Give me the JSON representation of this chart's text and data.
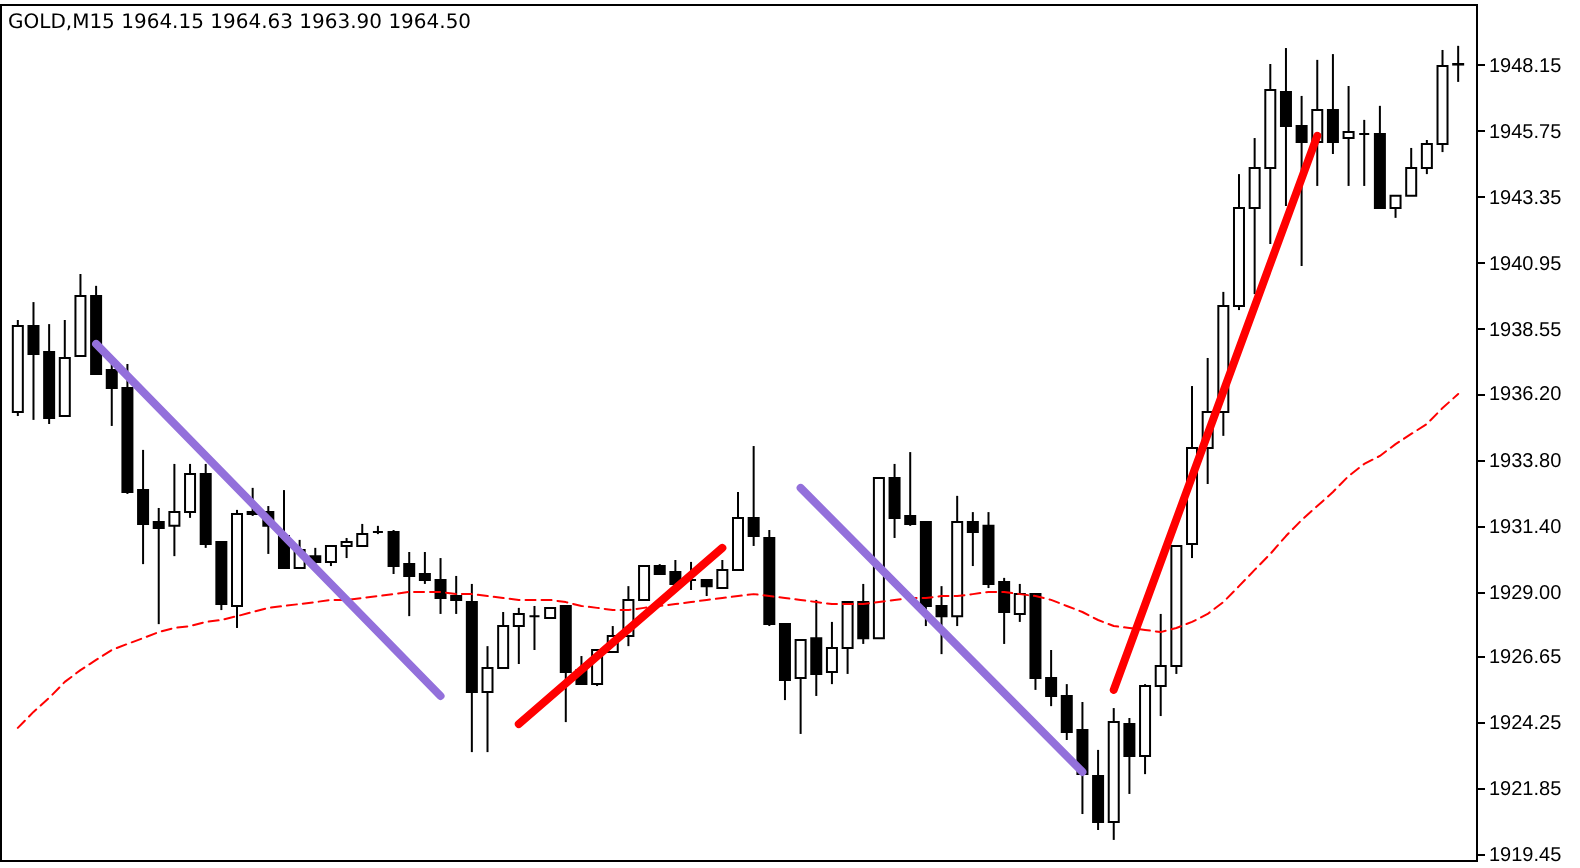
{
  "chart_data": {
    "type": "candlestick",
    "title": "GOLD,M15  1964.15 1964.63 1963.90 1964.50",
    "categories": [
      null,
      null,
      null,
      null,
      null,
      null,
      null,
      null,
      null,
      null,
      null,
      null,
      null,
      null,
      null,
      null,
      null,
      null,
      null,
      null,
      null,
      null,
      null,
      null,
      null,
      null,
      null,
      null,
      null,
      null,
      null,
      null,
      null,
      null,
      null,
      null,
      null,
      null,
      null,
      null,
      null,
      null,
      null,
      null,
      null,
      null,
      null,
      null,
      null,
      null,
      null,
      null,
      null,
      null,
      null,
      null,
      null,
      null,
      null,
      null,
      null,
      null,
      null,
      null,
      null,
      null,
      null,
      null,
      null,
      null,
      null,
      null,
      null,
      null,
      null,
      null,
      null,
      null,
      null,
      null,
      null,
      null,
      null,
      null,
      null,
      null,
      null,
      null,
      null,
      null,
      null,
      null,
      null
    ],
    "ohlc": [
      [
        1935.53,
        1938.87,
        1935.38,
        1938.65
      ],
      [
        1938.65,
        1939.52,
        1935.24,
        1937.63
      ],
      [
        1937.71,
        1938.72,
        1935.09,
        1935.31
      ],
      [
        1935.38,
        1938.87,
        1935.38,
        1937.49
      ],
      [
        1937.56,
        1940.54,
        1937.56,
        1939.74
      ],
      [
        1939.74,
        1940.11,
        1936.91,
        1936.91
      ],
      [
        1937.05,
        1937.27,
        1935.02,
        1936.4
      ],
      [
        1936.4,
        1937.27,
        1932.55,
        1932.62
      ],
      [
        1932.69,
        1934.15,
        1930.0,
        1931.46
      ],
      [
        1931.53,
        1932.04,
        1927.82,
        1931.31
      ],
      [
        1931.39,
        1933.64,
        1930.29,
        1931.89
      ],
      [
        1931.89,
        1933.64,
        1931.68,
        1933.27
      ],
      [
        1933.27,
        1933.64,
        1930.59,
        1930.73
      ],
      [
        1930.8,
        1930.8,
        1928.33,
        1928.55
      ],
      [
        1928.48,
        1931.97,
        1927.68,
        1931.82
      ],
      [
        1931.89,
        1932.77,
        1931.75,
        1931.82
      ],
      [
        1931.89,
        1932.11,
        1930.37,
        1931.39
      ],
      [
        1931.02,
        1932.69,
        1929.86,
        1929.86
      ],
      [
        1929.86,
        1930.88,
        1929.86,
        1930.51
      ],
      [
        1930.29,
        1930.59,
        1929.93,
        1930.08
      ],
      [
        1930.08,
        1930.66,
        1929.93,
        1930.66
      ],
      [
        1930.66,
        1930.95,
        1930.22,
        1930.8
      ],
      [
        1930.66,
        1931.46,
        1930.66,
        1931.09
      ],
      [
        1931.17,
        1931.39,
        1931.09,
        1931.17
      ],
      [
        1931.17,
        1931.24,
        1929.64,
        1929.93
      ],
      [
        1930.0,
        1930.44,
        1928.11,
        1929.57
      ],
      [
        1929.64,
        1930.44,
        1929.28,
        1929.42
      ],
      [
        1929.42,
        1930.22,
        1928.19,
        1928.77
      ],
      [
        1928.84,
        1929.57,
        1928.19,
        1928.7
      ],
      [
        1928.62,
        1929.28,
        1923.17,
        1925.35
      ],
      [
        1925.35,
        1927.02,
        1923.17,
        1926.23
      ],
      [
        1926.23,
        1928.26,
        1926.23,
        1927.75
      ],
      [
        1927.75,
        1928.41,
        1926.37,
        1928.19
      ],
      [
        1928.11,
        1928.48,
        1926.88,
        1928.11
      ],
      [
        1928.04,
        1928.41,
        1928.04,
        1928.41
      ],
      [
        1928.48,
        1928.48,
        1924.26,
        1926.08
      ],
      [
        1926.15,
        1926.66,
        1925.64,
        1925.64
      ],
      [
        1925.64,
        1926.88,
        1925.57,
        1926.88
      ],
      [
        1926.81,
        1927.75,
        1926.81,
        1927.39
      ],
      [
        1927.39,
        1929.2,
        1927.02,
        1928.7
      ],
      [
        1928.7,
        1929.93,
        1928.7,
        1929.93
      ],
      [
        1929.93,
        1930.0,
        1929.64,
        1929.64
      ],
      [
        1929.71,
        1930.15,
        1929.06,
        1929.28
      ],
      [
        1929.42,
        1930.08,
        1929.06,
        1929.42
      ],
      [
        1929.42,
        1929.42,
        1928.84,
        1929.2
      ],
      [
        1929.13,
        1930.15,
        1929.13,
        1929.79
      ],
      [
        1929.79,
        1932.62,
        1929.79,
        1931.68
      ],
      [
        1931.68,
        1934.29,
        1930.66,
        1931.02
      ],
      [
        1930.95,
        1931.24,
        1927.75,
        1927.82
      ],
      [
        1927.82,
        1927.82,
        1925.06,
        1925.79
      ],
      [
        1925.86,
        1927.24,
        1923.83,
        1927.24
      ],
      [
        1927.31,
        1928.7,
        1925.21,
        1926.01
      ],
      [
        1926.08,
        1927.9,
        1925.64,
        1926.95
      ],
      [
        1926.95,
        1928.62,
        1926.01,
        1928.62
      ],
      [
        1928.62,
        1929.28,
        1927.1,
        1927.31
      ],
      [
        1927.31,
        1933.13,
        1927.31,
        1933.13
      ],
      [
        1933.13,
        1933.64,
        1930.95,
        1931.68
      ],
      [
        1931.75,
        1934.07,
        1931.39,
        1931.46
      ],
      [
        1931.53,
        1931.53,
        1927.75,
        1928.48
      ],
      [
        1928.48,
        1929.2,
        1926.73,
        1928.11
      ],
      [
        1928.11,
        1932.48,
        1927.75,
        1931.53
      ],
      [
        1931.53,
        1931.89,
        1929.93,
        1931.17
      ],
      [
        1931.39,
        1931.89,
        1929.13,
        1929.28
      ],
      [
        1929.35,
        1929.5,
        1927.1,
        1928.26
      ],
      [
        1928.19,
        1929.28,
        1927.9,
        1928.91
      ],
      [
        1928.91,
        1928.91,
        1925.43,
        1925.86
      ],
      [
        1925.86,
        1926.88,
        1924.84,
        1925.21
      ],
      [
        1925.21,
        1925.64,
        1923.61,
        1923.9
      ],
      [
        1923.97,
        1924.99,
        1920.92,
        1922.37
      ],
      [
        1922.3,
        1923.25,
        1920.34,
        1920.63
      ],
      [
        1920.63,
        1924.77,
        1919.98,
        1924.26
      ],
      [
        1924.19,
        1924.41,
        1921.65,
        1923.03
      ],
      [
        1923.03,
        1925.64,
        1922.37,
        1925.57
      ],
      [
        1925.57,
        1928.19,
        1924.48,
        1926.3
      ],
      [
        1926.3,
        1930.66,
        1926.01,
        1930.66
      ],
      [
        1930.73,
        1936.47,
        1930.22,
        1934.22
      ],
      [
        1934.22,
        1937.49,
        1932.91,
        1935.53
      ],
      [
        1935.53,
        1939.89,
        1934.66,
        1939.38
      ],
      [
        1939.38,
        1944.17,
        1939.23,
        1942.94
      ],
      [
        1942.94,
        1945.48,
        1939.81,
        1944.39
      ],
      [
        1944.39,
        1948.17,
        1941.63,
        1947.23
      ],
      [
        1947.15,
        1948.75,
        1943.01,
        1945.92
      ],
      [
        1945.92,
        1947.01,
        1940.83,
        1945.34
      ],
      [
        1945.34,
        1948.32,
        1943.74,
        1946.5
      ],
      [
        1946.5,
        1948.53,
        1944.9,
        1945.34
      ],
      [
        1945.48,
        1947.37,
        1943.74,
        1945.7
      ],
      [
        1945.63,
        1946.14,
        1943.74,
        1945.63
      ],
      [
        1945.63,
        1946.65,
        1942.94,
        1942.94
      ],
      [
        1942.94,
        1943.38,
        1942.58,
        1943.38
      ],
      [
        1943.38,
        1945.12,
        1943.38,
        1944.39
      ],
      [
        1944.39,
        1945.41,
        1944.17,
        1945.26
      ],
      [
        1945.26,
        1948.68,
        1944.97,
        1948.1
      ],
      [
        1948.15,
        1948.83,
        1947.52,
        1948.17
      ]
    ],
    "series": [
      {
        "type": "line",
        "color": "#ff0000",
        "line_style": "dashed",
        "values": [
          1924.05,
          1924.63,
          1925.14,
          1925.72,
          1926.15,
          1926.52,
          1926.88,
          1927.1,
          1927.31,
          1927.53,
          1927.68,
          1927.75,
          1927.9,
          1927.97,
          1928.11,
          1928.26,
          1928.41,
          1928.48,
          1928.55,
          1928.62,
          1928.7,
          1928.7,
          1928.77,
          1928.84,
          1928.91,
          1928.99,
          1928.99,
          1928.99,
          1928.91,
          1928.91,
          1928.84,
          1928.77,
          1928.7,
          1928.7,
          1928.7,
          1928.62,
          1928.48,
          1928.41,
          1928.33,
          1928.33,
          1928.41,
          1928.48,
          1928.55,
          1928.62,
          1928.7,
          1928.77,
          1928.84,
          1928.91,
          1928.84,
          1928.77,
          1928.7,
          1928.62,
          1928.55,
          1928.55,
          1928.55,
          1928.62,
          1928.7,
          1928.77,
          1928.77,
          1928.84,
          1928.84,
          1928.91,
          1928.99,
          1928.99,
          1928.91,
          1928.84,
          1928.7,
          1928.48,
          1928.26,
          1927.97,
          1927.75,
          1927.68,
          1927.61,
          1927.53,
          1927.68,
          1927.9,
          1928.19,
          1928.62,
          1929.2,
          1929.79,
          1930.37,
          1931.02,
          1931.6,
          1932.11,
          1932.62,
          1933.2,
          1933.64,
          1933.93,
          1934.36,
          1934.73,
          1935.09,
          1935.67,
          1936.18
        ]
      },
      {
        "type": "line",
        "color": "#9370db",
        "values": [
          null,
          null,
          null,
          null,
          null,
          1938.0,
          null,
          null,
          null,
          null,
          null,
          null,
          null,
          null,
          null,
          null,
          null,
          null,
          null,
          null,
          null,
          null,
          null,
          null,
          null,
          null,
          null,
          1925.21,
          null,
          null,
          null,
          null,
          null,
          null,
          null,
          null,
          null,
          null,
          null,
          null,
          null,
          null,
          null,
          null,
          null,
          null,
          null,
          null,
          null,
          null,
          null,
          null,
          null,
          null,
          null,
          null,
          null,
          null,
          null,
          null,
          null,
          null,
          null,
          null,
          null,
          null,
          null,
          null,
          null,
          null,
          null,
          null,
          null,
          null,
          null,
          null,
          null,
          null,
          null,
          null,
          null,
          null,
          null,
          null,
          null,
          null,
          null,
          null,
          null,
          null,
          null,
          null,
          null
        ]
      },
      {
        "type": "line",
        "color": "#ff0000",
        "values": [
          null,
          null,
          null,
          null,
          null,
          null,
          null,
          null,
          null,
          null,
          null,
          null,
          null,
          null,
          null,
          null,
          null,
          null,
          null,
          null,
          null,
          null,
          null,
          null,
          null,
          null,
          null,
          null,
          null,
          null,
          null,
          null,
          1924.19,
          null,
          null,
          null,
          null,
          null,
          null,
          null,
          null,
          null,
          null,
          null,
          null,
          1930.59,
          null,
          null,
          null,
          null,
          null,
          null,
          null,
          null,
          null,
          null,
          null,
          null,
          null,
          null,
          null,
          null,
          null,
          null,
          null,
          null,
          null,
          null,
          null,
          null,
          null,
          null,
          null,
          null,
          null,
          null,
          null,
          null,
          null,
          null,
          null,
          null,
          null,
          null,
          null,
          null,
          null,
          null,
          null,
          null,
          null,
          null,
          null
        ]
      },
      {
        "type": "line",
        "color": "#9370db",
        "values": [
          null,
          null,
          null,
          null,
          null,
          null,
          null,
          null,
          null,
          null,
          null,
          null,
          null,
          null,
          null,
          null,
          null,
          null,
          null,
          null,
          null,
          null,
          null,
          null,
          null,
          null,
          null,
          null,
          null,
          null,
          null,
          null,
          null,
          null,
          null,
          null,
          null,
          null,
          null,
          null,
          null,
          null,
          null,
          null,
          null,
          null,
          null,
          null,
          null,
          null,
          1932.77,
          null,
          null,
          null,
          null,
          null,
          null,
          null,
          null,
          null,
          null,
          null,
          null,
          null,
          null,
          null,
          null,
          null,
          1922.45,
          null,
          null,
          null,
          null,
          null,
          null,
          null,
          null,
          null,
          null,
          null,
          null,
          null,
          null,
          null,
          null,
          null,
          null,
          null,
          null,
          null,
          null,
          null,
          null
        ]
      },
      {
        "type": "line",
        "color": "#ff0000",
        "values": [
          null,
          null,
          null,
          null,
          null,
          null,
          null,
          null,
          null,
          null,
          null,
          null,
          null,
          null,
          null,
          null,
          null,
          null,
          null,
          null,
          null,
          null,
          null,
          null,
          null,
          null,
          null,
          null,
          null,
          null,
          null,
          null,
          null,
          null,
          null,
          null,
          null,
          null,
          null,
          null,
          null,
          null,
          null,
          null,
          null,
          null,
          null,
          null,
          null,
          null,
          null,
          null,
          null,
          null,
          null,
          null,
          null,
          null,
          null,
          null,
          null,
          null,
          null,
          null,
          null,
          null,
          null,
          null,
          null,
          null,
          1925.43,
          null,
          null,
          null,
          null,
          null,
          null,
          null,
          null,
          null,
          null,
          null,
          null,
          1945.56,
          null,
          null,
          null,
          null,
          null,
          null,
          null,
          null,
          null
        ]
      }
    ],
    "ylim": [
      1919.25,
      1950.35
    ],
    "yticks": [
      1919.45,
      {
        "value": 1921.85,
        "label": "1921.85"
      },
      1924.25,
      1926.65,
      {
        "value": 1929,
        "label": "1929.00"
      },
      {
        "value": 1931.4,
        "label": "1931.40"
      },
      {
        "value": 1933.8,
        "label": "1933.80"
      },
      {
        "value": 1936.2,
        "label": "1936.20"
      },
      1938.55,
      1940.95,
      {
        "value": 1943.35,
        "label": "1943.35"
      },
      1945.75,
      1948.15
    ],
    "tick_labels": "y"
  }
}
